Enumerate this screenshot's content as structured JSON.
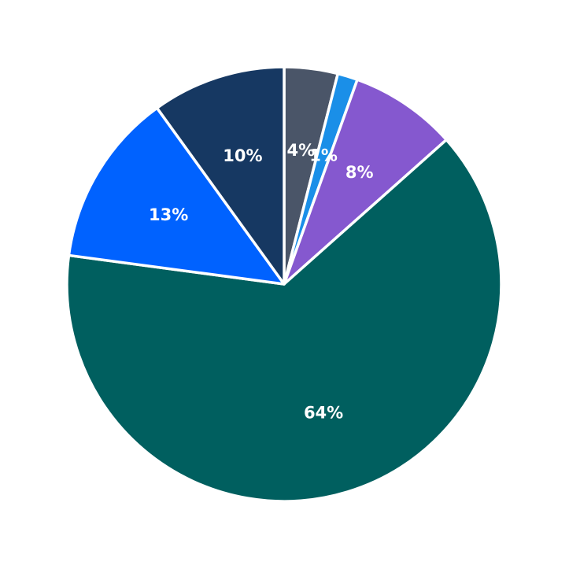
{
  "chart_data": {
    "type": "pie",
    "title": "",
    "start_angle_deg": 90,
    "direction": "clockwise",
    "slices": [
      {
        "value": 4,
        "label": "4%",
        "color": "#4a5568"
      },
      {
        "value": 1.5,
        "label": "1%",
        "color": "#1a8fe8"
      },
      {
        "value": 8,
        "label": "8%",
        "color": "#8558cf"
      },
      {
        "value": 64,
        "label": "64%",
        "color": "#005f5f"
      },
      {
        "value": 13,
        "label": "13%",
        "color": "#0062ff"
      },
      {
        "value": 10,
        "label": "10%",
        "color": "#163862"
      }
    ]
  }
}
